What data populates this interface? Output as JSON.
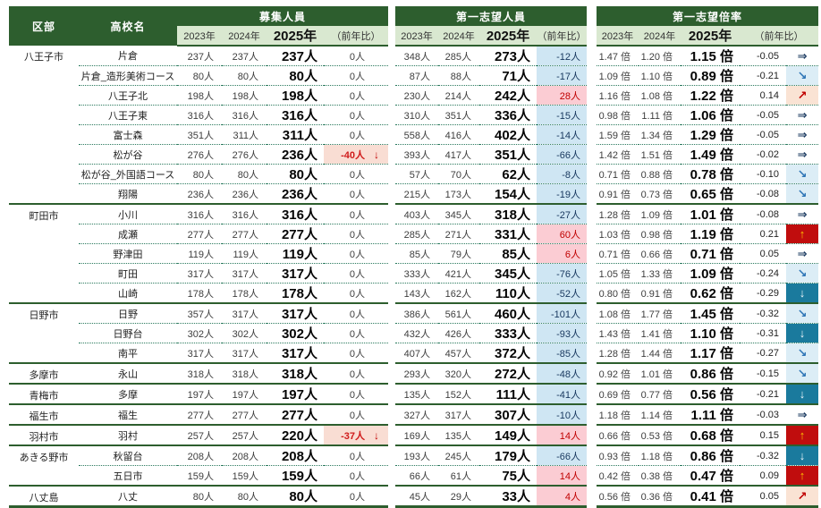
{
  "header": {
    "col_city": "区部",
    "col_school": "高校名",
    "years": [
      "2023年",
      "2024年",
      "2025年"
    ],
    "diff_label": "（前年比）"
  },
  "sections": {
    "recruit": "募集人員",
    "first_choice": "第一志望人員",
    "ratio": "第一志望倍率"
  },
  "icons": {
    "flat": "⇒",
    "down_diag": "↘",
    "up_diag": "↗",
    "up": "↑",
    "down": "↓",
    "drop": "↓"
  },
  "colors": {
    "header_green": "#2d5e2e",
    "subheader_green": "#d9e8d0",
    "decrease_blue_bg": "#cfe6f3",
    "increase_pink_bg": "#fbccd3",
    "recruit_drop_bg": "#f9ddd3",
    "strong_up_red_bg": "#c00d0d",
    "strong_down_teal_bg": "#1a7a9d",
    "mild_up_orange_bg": "#fae3d4",
    "mild_down_blue_bg": "#dcedf6",
    "up_arrow_gold": "#ffc000",
    "negative_text_navy": "#17375e",
    "positive_text_red": "#c00000"
  },
  "rows": [
    {
      "city": "八王子市",
      "span": 8,
      "school": "片倉",
      "recruit": [
        "237人",
        "237人",
        "237人",
        "0人"
      ],
      "recruit_flag": "none",
      "first_choice": [
        "348人",
        "285人",
        "273人",
        "-12人"
      ],
      "fc_flag": "neg",
      "ratio": [
        "1.47 倍",
        "1.20 倍",
        "1.15 倍",
        "-0.05"
      ],
      "trend": "flat"
    },
    {
      "school": "片倉_造形美術コース",
      "recruit": [
        "80人",
        "80人",
        "80人",
        "0人"
      ],
      "recruit_flag": "none",
      "first_choice": [
        "87人",
        "88人",
        "71人",
        "-17人"
      ],
      "fc_flag": "neg",
      "ratio": [
        "1.09 倍",
        "1.10 倍",
        "0.89 倍",
        "-0.21"
      ],
      "trend": "down_diag"
    },
    {
      "school": "八王子北",
      "recruit": [
        "198人",
        "198人",
        "198人",
        "0人"
      ],
      "recruit_flag": "none",
      "first_choice": [
        "230人",
        "214人",
        "242人",
        "28人"
      ],
      "fc_flag": "pos",
      "ratio": [
        "1.16 倍",
        "1.08 倍",
        "1.22 倍",
        "0.14"
      ],
      "trend": "up_diag"
    },
    {
      "school": "八王子東",
      "recruit": [
        "316人",
        "316人",
        "316人",
        "0人"
      ],
      "recruit_flag": "none",
      "first_choice": [
        "310人",
        "351人",
        "336人",
        "-15人"
      ],
      "fc_flag": "neg",
      "ratio": [
        "0.98 倍",
        "1.11 倍",
        "1.06 倍",
        "-0.05"
      ],
      "trend": "flat"
    },
    {
      "school": "富士森",
      "recruit": [
        "351人",
        "311人",
        "311人",
        "0人"
      ],
      "recruit_flag": "none",
      "first_choice": [
        "558人",
        "416人",
        "402人",
        "-14人"
      ],
      "fc_flag": "neg",
      "ratio": [
        "1.59 倍",
        "1.34 倍",
        "1.29 倍",
        "-0.05"
      ],
      "trend": "flat"
    },
    {
      "school": "松が谷",
      "recruit": [
        "276人",
        "276人",
        "236人",
        "-40人"
      ],
      "recruit_flag": "drop",
      "first_choice": [
        "393人",
        "417人",
        "351人",
        "-66人"
      ],
      "fc_flag": "neg",
      "ratio": [
        "1.42 倍",
        "1.51 倍",
        "1.49 倍",
        "-0.02"
      ],
      "trend": "flat"
    },
    {
      "school": "松が谷_外国語コース",
      "recruit": [
        "80人",
        "80人",
        "80人",
        "0人"
      ],
      "recruit_flag": "none",
      "first_choice": [
        "57人",
        "70人",
        "62人",
        "-8人"
      ],
      "fc_flag": "neg",
      "ratio": [
        "0.71 倍",
        "0.88 倍",
        "0.78 倍",
        "-0.10"
      ],
      "trend": "down_diag"
    },
    {
      "school": "翔陽",
      "recruit": [
        "236人",
        "236人",
        "236人",
        "0人"
      ],
      "recruit_flag": "none",
      "first_choice": [
        "215人",
        "173人",
        "154人",
        "-19人"
      ],
      "fc_flag": "neg",
      "ratio": [
        "0.91 倍",
        "0.73 倍",
        "0.65 倍",
        "-0.08"
      ],
      "trend": "down_diag"
    },
    {
      "city": "町田市",
      "span": 5,
      "school": "小川",
      "recruit": [
        "316人",
        "316人",
        "316人",
        "0人"
      ],
      "recruit_flag": "none",
      "first_choice": [
        "403人",
        "345人",
        "318人",
        "-27人"
      ],
      "fc_flag": "neg",
      "ratio": [
        "1.28 倍",
        "1.09 倍",
        "1.01 倍",
        "-0.08"
      ],
      "trend": "flat"
    },
    {
      "school": "成瀬",
      "recruit": [
        "277人",
        "277人",
        "277人",
        "0人"
      ],
      "recruit_flag": "none",
      "first_choice": [
        "285人",
        "271人",
        "331人",
        "60人"
      ],
      "fc_flag": "pos",
      "ratio": [
        "1.03 倍",
        "0.98 倍",
        "1.19 倍",
        "0.21"
      ],
      "trend": "up"
    },
    {
      "school": "野津田",
      "recruit": [
        "119人",
        "119人",
        "119人",
        "0人"
      ],
      "recruit_flag": "none",
      "first_choice": [
        "85人",
        "79人",
        "85人",
        "6人"
      ],
      "fc_flag": "pos",
      "ratio": [
        "0.71 倍",
        "0.66 倍",
        "0.71 倍",
        "0.05"
      ],
      "trend": "flat"
    },
    {
      "school": "町田",
      "recruit": [
        "317人",
        "317人",
        "317人",
        "0人"
      ],
      "recruit_flag": "none",
      "first_choice": [
        "333人",
        "421人",
        "345人",
        "-76人"
      ],
      "fc_flag": "neg",
      "ratio": [
        "1.05 倍",
        "1.33 倍",
        "1.09 倍",
        "-0.24"
      ],
      "trend": "down_diag"
    },
    {
      "school": "山崎",
      "recruit": [
        "178人",
        "178人",
        "178人",
        "0人"
      ],
      "recruit_flag": "none",
      "first_choice": [
        "143人",
        "162人",
        "110人",
        "-52人"
      ],
      "fc_flag": "neg",
      "ratio": [
        "0.80 倍",
        "0.91 倍",
        "0.62 倍",
        "-0.29"
      ],
      "trend": "down"
    },
    {
      "city": "日野市",
      "span": 3,
      "school": "日野",
      "recruit": [
        "357人",
        "317人",
        "317人",
        "0人"
      ],
      "recruit_flag": "none",
      "first_choice": [
        "386人",
        "561人",
        "460人",
        "-101人"
      ],
      "fc_flag": "neg",
      "ratio": [
        "1.08 倍",
        "1.77 倍",
        "1.45 倍",
        "-0.32"
      ],
      "trend": "down_diag"
    },
    {
      "school": "日野台",
      "recruit": [
        "302人",
        "302人",
        "302人",
        "0人"
      ],
      "recruit_flag": "none",
      "first_choice": [
        "432人",
        "426人",
        "333人",
        "-93人"
      ],
      "fc_flag": "neg",
      "ratio": [
        "1.43 倍",
        "1.41 倍",
        "1.10 倍",
        "-0.31"
      ],
      "trend": "down"
    },
    {
      "school": "南平",
      "recruit": [
        "317人",
        "317人",
        "317人",
        "0人"
      ],
      "recruit_flag": "none",
      "first_choice": [
        "407人",
        "457人",
        "372人",
        "-85人"
      ],
      "fc_flag": "neg",
      "ratio": [
        "1.28 倍",
        "1.44 倍",
        "1.17 倍",
        "-0.27"
      ],
      "trend": "down_diag"
    },
    {
      "city": "多摩市",
      "span": 1,
      "school": "永山",
      "recruit": [
        "318人",
        "318人",
        "318人",
        "0人"
      ],
      "recruit_flag": "none",
      "first_choice": [
        "293人",
        "320人",
        "272人",
        "-48人"
      ],
      "fc_flag": "neg",
      "ratio": [
        "0.92 倍",
        "1.01 倍",
        "0.86 倍",
        "-0.15"
      ],
      "trend": "down_diag"
    },
    {
      "city": "青梅市",
      "span": 1,
      "school": "多摩",
      "recruit": [
        "197人",
        "197人",
        "197人",
        "0人"
      ],
      "recruit_flag": "none",
      "first_choice": [
        "135人",
        "152人",
        "111人",
        "-41人"
      ],
      "fc_flag": "neg",
      "ratio": [
        "0.69 倍",
        "0.77 倍",
        "0.56 倍",
        "-0.21"
      ],
      "trend": "down"
    },
    {
      "city": "福生市",
      "span": 1,
      "school": "福生",
      "recruit": [
        "277人",
        "277人",
        "277人",
        "0人"
      ],
      "recruit_flag": "none",
      "first_choice": [
        "327人",
        "317人",
        "307人",
        "-10人"
      ],
      "fc_flag": "neg",
      "ratio": [
        "1.18 倍",
        "1.14 倍",
        "1.11 倍",
        "-0.03"
      ],
      "trend": "flat"
    },
    {
      "city": "羽村市",
      "span": 1,
      "school": "羽村",
      "recruit": [
        "257人",
        "257人",
        "220人",
        "-37人"
      ],
      "recruit_flag": "drop",
      "first_choice": [
        "169人",
        "135人",
        "149人",
        "14人"
      ],
      "fc_flag": "pos",
      "ratio": [
        "0.66 倍",
        "0.53 倍",
        "0.68 倍",
        "0.15"
      ],
      "trend": "up"
    },
    {
      "city": "あきる野市",
      "span": 2,
      "school": "秋留台",
      "recruit": [
        "208人",
        "208人",
        "208人",
        "0人"
      ],
      "recruit_flag": "none",
      "first_choice": [
        "193人",
        "245人",
        "179人",
        "-66人"
      ],
      "fc_flag": "neg",
      "ratio": [
        "0.93 倍",
        "1.18 倍",
        "0.86 倍",
        "-0.32"
      ],
      "trend": "down"
    },
    {
      "school": "五日市",
      "recruit": [
        "159人",
        "159人",
        "159人",
        "0人"
      ],
      "recruit_flag": "none",
      "first_choice": [
        "66人",
        "61人",
        "75人",
        "14人"
      ],
      "fc_flag": "pos",
      "ratio": [
        "0.42 倍",
        "0.38 倍",
        "0.47 倍",
        "0.09"
      ],
      "trend": "up"
    },
    {
      "city": "八丈島",
      "span": 1,
      "school": "八丈",
      "recruit": [
        "80人",
        "80人",
        "80人",
        "0人"
      ],
      "recruit_flag": "none",
      "first_choice": [
        "45人",
        "29人",
        "33人",
        "4人"
      ],
      "fc_flag": "pos",
      "ratio": [
        "0.56 倍",
        "0.36 倍",
        "0.41 倍",
        "0.05"
      ],
      "trend": "up_diag"
    }
  ]
}
